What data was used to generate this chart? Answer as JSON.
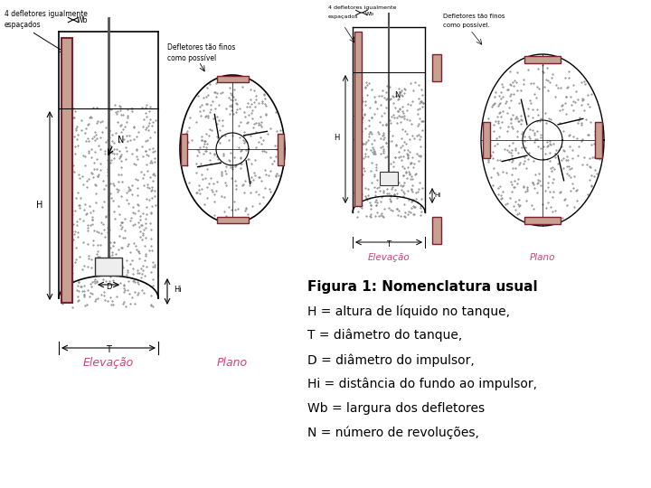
{
  "bg_color": "#ffffff",
  "title_text": "Figura 1: Nomenclatura usual",
  "legend_lines": [
    "H = altura de líquido no tanque,",
    "T = diâmetro do tanque,",
    "D = diâmetro do impulsor,",
    "Hi = distância do fundo ao impulsor,",
    "Wb = largura dos defletores",
    "N = número de revoluções,"
  ],
  "elev_label": "Elevação",
  "plano_label": "Plano",
  "baffle_color": "#c8a090",
  "baffle_border": "#7a2030",
  "tank_color": "#d8d8d8",
  "liquid_dot_color": "#aaaaaa",
  "label_color_pink": "#cc4477",
  "annotation_color": "#333333",
  "dim_color": "#222222"
}
